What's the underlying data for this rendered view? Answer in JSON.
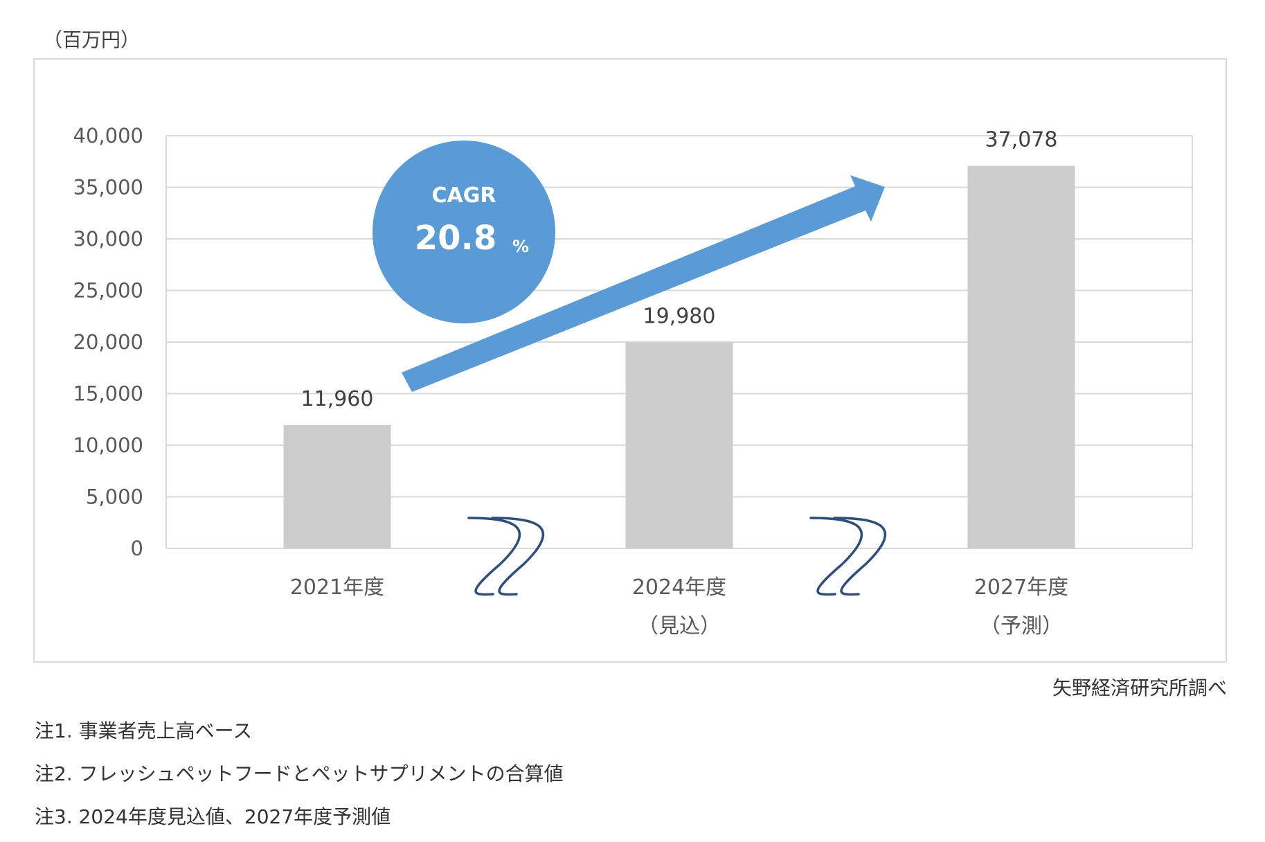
{
  "unit_label": "（百万円）",
  "source": "矢野経済研究所調べ",
  "notes": [
    "注1. 事業者売上高ベース",
    "注2. フレッシュペットフードとペットサプリメントの合算値",
    "注3. 2024年度見込値、2027年度予測値"
  ],
  "cagr": {
    "label": "CAGR",
    "value": "20.8",
    "unit": "%"
  },
  "colors": {
    "bar": "#cccccc",
    "grid": "#d9d9d9",
    "cagr": "#5b9bd5",
    "arrow": "#5b9bd5",
    "break": "#2f4f7a"
  },
  "chart_data": {
    "type": "bar",
    "categories": [
      "2021年度",
      "2024年度",
      "2027年度"
    ],
    "category_sublabels": [
      "",
      "（見込）",
      "（予測）"
    ],
    "values": [
      11960,
      19980,
      37078
    ],
    "data_labels": [
      "11,960",
      "19,980",
      "37,078"
    ],
    "ylim": [
      0,
      40000
    ],
    "yticks": [
      0,
      5000,
      10000,
      15000,
      20000,
      25000,
      30000,
      35000,
      40000
    ],
    "ytick_labels": [
      "0",
      "5,000",
      "10,000",
      "15,000",
      "20,000",
      "25,000",
      "30,000",
      "35,000",
      "40,000"
    ],
    "grid": true,
    "axis_breaks": true
  }
}
